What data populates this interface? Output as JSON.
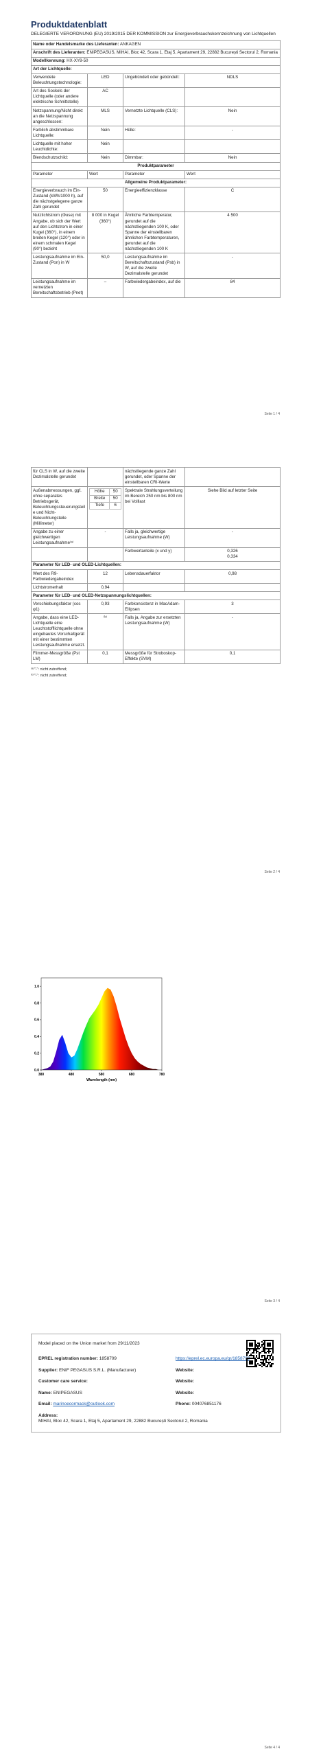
{
  "page1": {
    "title": "Produktdatenblatt",
    "subtitle": "DELEGIERTE VERORDNUNG (EU) 2019/2015 DER KOMMISSION zur Energieverbrauchskennzeichnung von Lichtquellen",
    "info": [
      {
        "label": "Name oder Handelsmarke des Lieferanten:",
        "value": "ANKAGEN"
      },
      {
        "label": "Anschrift des Lieferanten:",
        "value": "ENIPEGASUS, MIHAI, Bloc 42, Scara 1, Etaj 5, Apartament 29, 22882 București Sectorul 2, Romania"
      },
      {
        "label": "Modellkennung:",
        "value": "HX-XY8-50"
      }
    ],
    "type_heading": "Art der Lichtquelle:",
    "type_rows": [
      [
        "Verwendete Beleuchtungstechnologie:",
        "LED",
        "Ungebündelt oder gebündelt:",
        "NDLS"
      ],
      [
        "Art des Sockels der Lichtquelle (oder andere elektrische Schnittstelle)",
        "AC",
        null,
        null
      ],
      [
        "Netzspannung/Nicht direkt an die Netzspannung angeschlossen:",
        "MLS",
        "Vernetzte Lichtquelle (CLS):",
        "Nein"
      ],
      [
        "Farblich abstimmbare Lichtquelle:",
        "Nein",
        "Hülle:",
        "-"
      ],
      [
        "Lichtquelle mit hoher Leuchtdichte:",
        "Nein",
        null,
        null
      ],
      [
        "Blendschutzschild:",
        "Nein",
        "Dimmbar:",
        "Nein"
      ]
    ],
    "section": "Produktparameter",
    "col_headers": [
      "Parameter",
      "Wert",
      "Parameter",
      "Wert"
    ],
    "general": "Allgemeine Produktparameter:",
    "rows": [
      [
        "Energieverbrauch im Ein-Zustand (kWh/1000 h), auf die nächstgelegene ganze Zahl gerundet",
        "50",
        "Energieeffizienzklasse",
        "C"
      ],
      [
        "Nutzlichtstrom (Φuse) mit Angabe, ob sich der Wert auf den Lichtstrom in einer Kugel (360°), in einem breiten Kegel (120°) oder in einem schmalen Kegel (90°) bezieht",
        "8 000 in Kugel (360°)",
        "Ähnliche Farbtemperatur, gerundet auf die nächstliegenden 100 K, oder Spanne der einstellbaren ähnlichen Farbtemperaturen, gerundet auf die nächstliegenden 100 K",
        "4 500"
      ],
      [
        "Leistungsaufnahme im Ein-Zustand (Pon) in W",
        "50,0",
        "Leistungsaufnahme im Bereitschaftszustand (Psb) in W, auf die zweite Dezimalstelle gerundet",
        "-"
      ],
      [
        "Leistungsaufnahme im vernetzten Bereitschaftsbetrieb (Pnet)",
        "–",
        "Farbwiedergabeindex, auf die",
        "84"
      ]
    ],
    "footer": "Seite 1 / 4"
  },
  "page2": {
    "rows": [
      [
        "für CLS in W, auf die zweite Dezimalstelle gerundet",
        null,
        "nächstliegende ganze Zahl gerundet, oder Spanne der einstellbaren CRI-Werte",
        null
      ],
      [
        "Außenabmessungen, ggf. ohne separates Betriebsgerät, Beleuchtungssteuerungsteile und Nicht-Beleuchtungsteile (Millimeter)",
        [
          [
            "Höhe",
            "50"
          ],
          [
            "Breite",
            "50"
          ],
          [
            "Tiefe",
            "6"
          ]
        ],
        "Spektrale Strahlungsverteilung im Bereich 250 nm bis 800 nm bei Volllast",
        "Siehe Bild auf letzter Seite"
      ],
      [
        "Angabe zu einer gleichwertigen Leistungsaufnahme⁽ᵃ⁾",
        "-",
        "Falls ja, gleichwertige Leistungsaufnahme (W)",
        "-"
      ],
      [
        null,
        null,
        "Farbwertanteile (x und y)",
        [
          "0,326",
          "0,334"
        ]
      ]
    ],
    "led_heading": "Parameter für LED- und OLED-Lichtquellen:",
    "led_rows": [
      [
        "Wert des R9-Farbwiedergabeindex",
        "12",
        "Lebensdauerfaktor",
        "0,98"
      ],
      [
        "Lichtstromerhalt",
        "0,94",
        null,
        null
      ]
    ],
    "mains_heading": "Parameter für LED- und OLED-Netzspannungslichtquellen:",
    "mains_rows": [
      [
        "Verschiebungsfaktor (cos φ1)",
        "0,93",
        "Farbkonsistenz in MacAdam-Ellipsen",
        "3"
      ],
      [
        "Angabe, dass eine LED-Lichtquelle eine Leuchtstofflichtquelle ohne eingebautes Vorschaltgerät mit einer bestimmten Leistungsaufnahme ersetzt.",
        "⁽ᵇ⁾",
        "Falls ja, Angabe zur ersetzten Leistungsaufnahme (W)",
        "-"
      ],
      [
        "Flimmer-Messgröße (Pst LM)",
        "0,1",
        "Messgröße für Stroboskop-Effekte (SVM)",
        "0,1"
      ]
    ],
    "notes": [
      "⁽ᵃ⁾\"-\": nicht zutreffend;",
      "⁽ᵇ⁾\"-\": nicht zutreffend;"
    ],
    "footer": "Seite 2 / 4"
  },
  "page3": {
    "footer": "Seite 3 / 4"
  },
  "page4": {
    "placed": "Model placed on the Union market from 29/11/2023",
    "fields": [
      {
        "label": "EPREL registration number:",
        "value": "1858709"
      },
      {
        "link": "https://eprel.ec.europa.eu/qr/1858709"
      },
      {
        "label": "Supplier:",
        "value": "ENIF PEGASUS S.R.L. (Manufacturer)"
      },
      {
        "label": "Website:"
      },
      {
        "label": "Customer care service:"
      },
      {
        "label": "Website:"
      },
      {
        "label": "Name:",
        "value": "ENIPEGASUS"
      },
      {
        "label": "Website:"
      },
      {
        "label": "Email:",
        "email": "marinoecormack@outlook.com"
      },
      {
        "label": "Phone:",
        "value": "004076851176"
      }
    ],
    "address": {
      "label": "Address:",
      "value": "MIHAI, Bloc 42, Scara 1, Etaj 5, Apartament 29, 22882 București Sectorul 2, Romania"
    },
    "footer": "Seite 4 / 4"
  },
  "chart_data": {
    "type": "area",
    "x_label": "Wavelength (nm)",
    "x": [
      380,
      390,
      400,
      410,
      420,
      430,
      440,
      450,
      460,
      470,
      480,
      490,
      500,
      510,
      520,
      530,
      540,
      550,
      560,
      570,
      580,
      590,
      600,
      610,
      620,
      630,
      640,
      650,
      660,
      670,
      680,
      690,
      700,
      710,
      720,
      730,
      740,
      750,
      760,
      770,
      780
    ],
    "values": [
      0,
      0.01,
      0.02,
      0.04,
      0.1,
      0.22,
      0.36,
      0.42,
      0.32,
      0.2,
      0.15,
      0.17,
      0.25,
      0.35,
      0.45,
      0.54,
      0.62,
      0.67,
      0.72,
      0.78,
      0.86,
      0.94,
      0.98,
      0.96,
      0.88,
      0.76,
      0.62,
      0.5,
      0.38,
      0.28,
      0.2,
      0.14,
      0.1,
      0.07,
      0.05,
      0.03,
      0.02,
      0.01,
      0.01,
      0,
      0
    ],
    "xlim": [
      380,
      780
    ],
    "xticks": [
      380,
      480,
      580,
      680,
      780
    ],
    "ylim": [
      0,
      1.1
    ],
    "yticks": [
      {
        "value": 0,
        "label": "0.0"
      },
      0.2,
      0.4,
      0.6,
      0.8,
      {
        "value": 1,
        "label": "1.0"
      }
    ]
  }
}
